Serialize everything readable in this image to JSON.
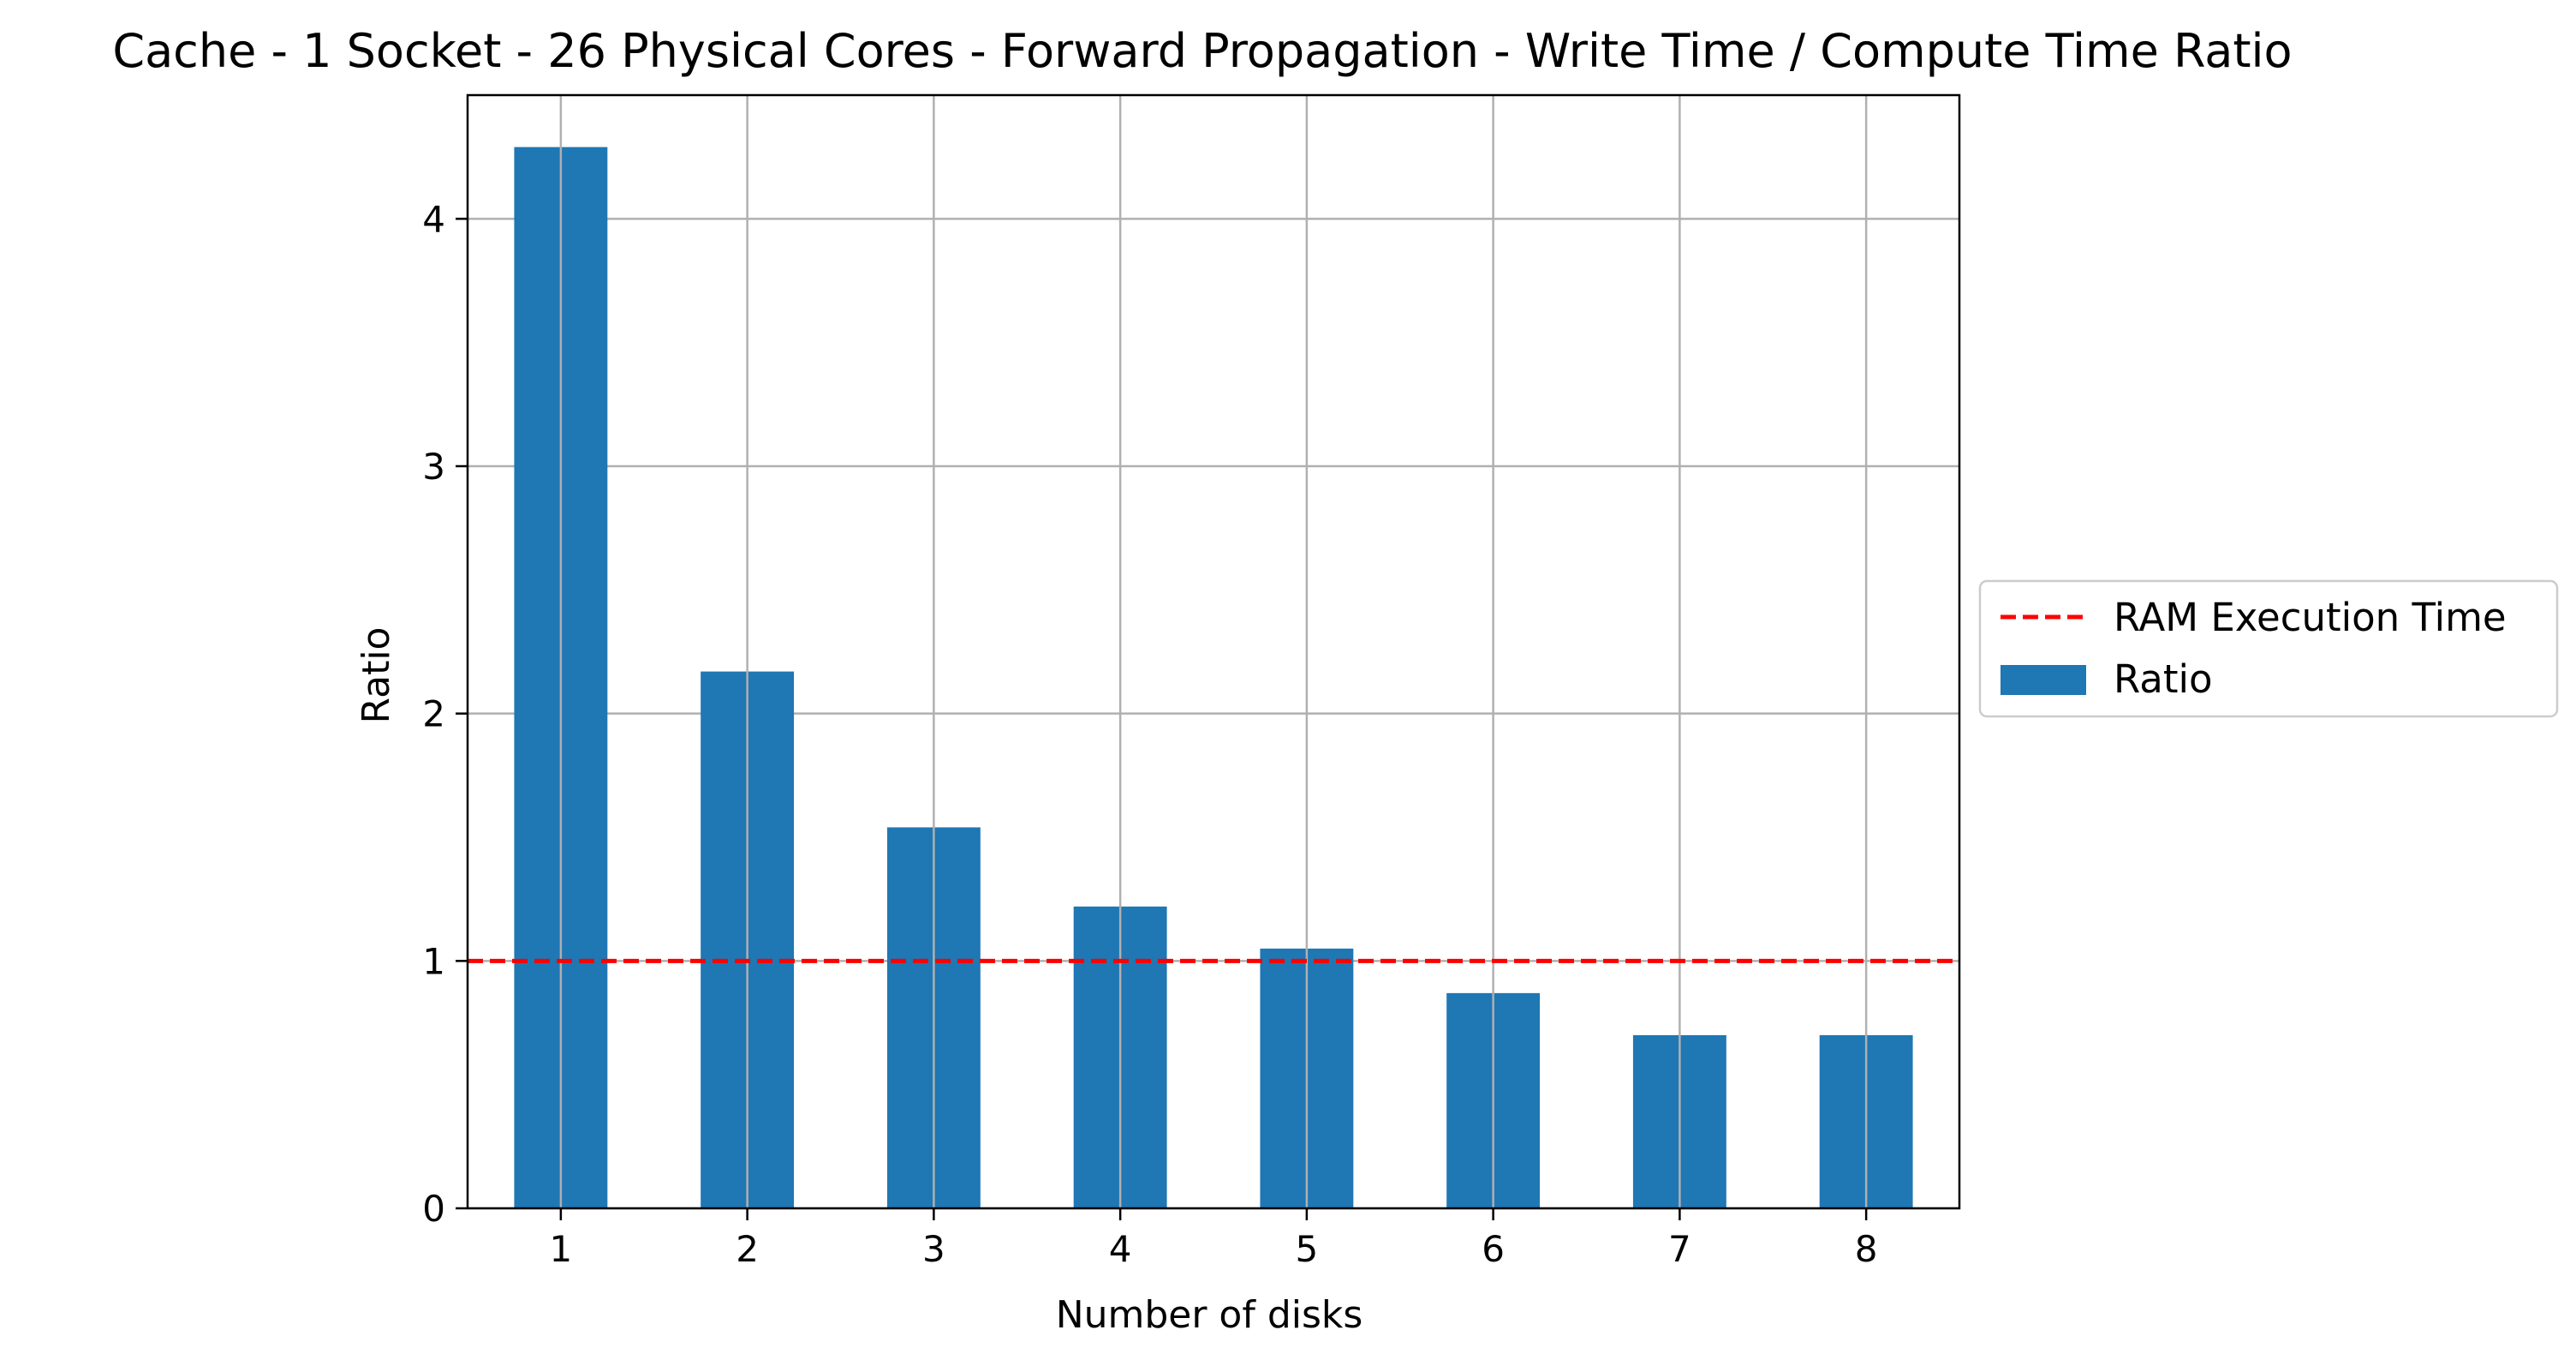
{
  "chart_data": {
    "type": "bar",
    "title": "Cache - 1 Socket - 26 Physical Cores - Forward Propagation - Write Time / Compute Time Ratio",
    "xlabel": "Number of disks",
    "ylabel": "Ratio",
    "categories": [
      "1",
      "2",
      "3",
      "4",
      "5",
      "6",
      "7",
      "8"
    ],
    "series": [
      {
        "name": "Ratio",
        "color": "#1f77b4",
        "values": [
          4.29,
          2.17,
          1.54,
          1.22,
          1.05,
          0.87,
          0.7,
          0.7
        ]
      }
    ],
    "reference_line": {
      "name": "RAM Execution Time",
      "y": 1.0,
      "color": "#ff0000",
      "style": "dashed"
    },
    "ylim": [
      0,
      4.5
    ],
    "yticks": [
      "0",
      "1",
      "2",
      "3",
      "4"
    ],
    "grid": true,
    "legend_position": "center-right-outside"
  }
}
